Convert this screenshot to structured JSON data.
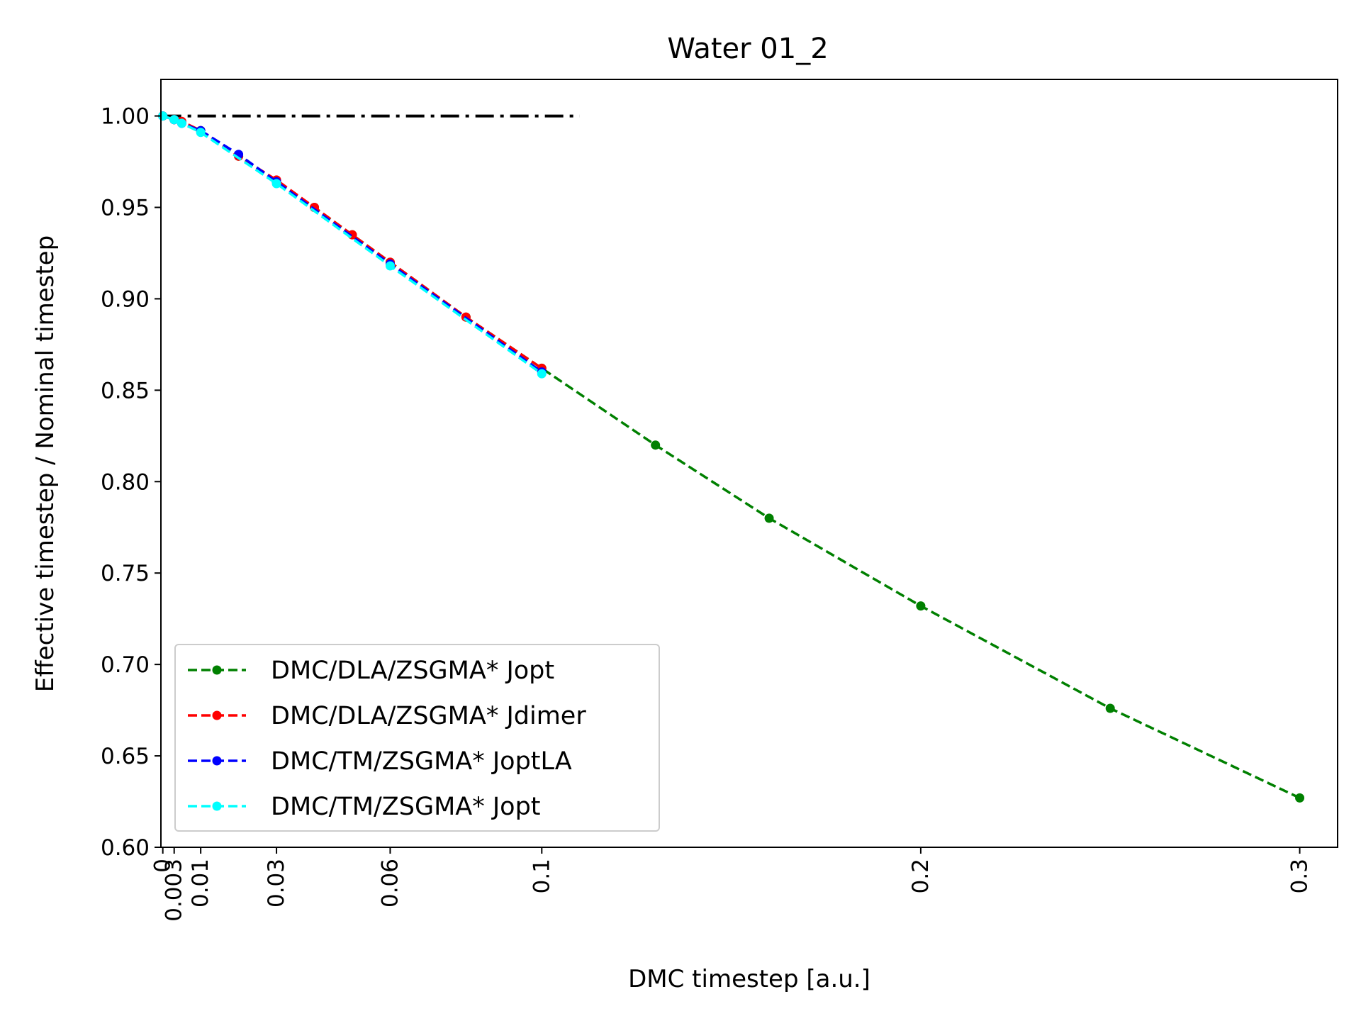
{
  "chart_data": {
    "type": "line",
    "title": "Water 01_2",
    "xlabel": "DMC timestep [a.u.]",
    "ylabel": "Effective timestep / Nominal timestep",
    "xlim": [
      -0.0005,
      0.31
    ],
    "ylim": [
      0.6,
      1.02
    ],
    "x_ticks": [
      {
        "value": 0,
        "label": "0"
      },
      {
        "value": 0.003,
        "label": "0.003"
      },
      {
        "value": 0.01,
        "label": "0.01"
      },
      {
        "value": 0.03,
        "label": "0.03"
      },
      {
        "value": 0.06,
        "label": "0.06"
      },
      {
        "value": 0.1,
        "label": "0.1"
      },
      {
        "value": 0.2,
        "label": "0.2"
      },
      {
        "value": 0.3,
        "label": "0.3"
      }
    ],
    "y_ticks": [
      {
        "value": 0.6,
        "label": "0.60"
      },
      {
        "value": 0.65,
        "label": "0.65"
      },
      {
        "value": 0.7,
        "label": "0.70"
      },
      {
        "value": 0.75,
        "label": "0.75"
      },
      {
        "value": 0.8,
        "label": "0.80"
      },
      {
        "value": 0.85,
        "label": "0.85"
      },
      {
        "value": 0.9,
        "label": "0.90"
      },
      {
        "value": 0.95,
        "label": "0.95"
      },
      {
        "value": 1.0,
        "label": "1.00"
      }
    ],
    "grid": false,
    "legend_position": "lower-left",
    "reference_line": {
      "x": [
        0,
        0.11
      ],
      "y": [
        1.0,
        1.0
      ],
      "color": "#000000",
      "style": "dashdot"
    },
    "series": [
      {
        "name": "DMC/DLA/ZSGMA* Jopt",
        "color": "#008000",
        "x": [
          0,
          0.003,
          0.01,
          0.02,
          0.03,
          0.04,
          0.05,
          0.06,
          0.08,
          0.1,
          0.13,
          0.16,
          0.2,
          0.25,
          0.3
        ],
        "y": [
          1.0,
          0.998,
          0.992,
          0.978,
          0.964,
          0.95,
          0.935,
          0.92,
          0.89,
          0.862,
          0.82,
          0.78,
          0.732,
          0.676,
          0.627
        ]
      },
      {
        "name": "DMC/DLA/ZSGMA* Jdimer",
        "color": "#ff0000",
        "x": [
          0,
          0.003,
          0.005,
          0.01,
          0.02,
          0.03,
          0.04,
          0.05,
          0.06,
          0.08,
          0.1
        ],
        "y": [
          1.0,
          0.998,
          0.997,
          0.992,
          0.978,
          0.965,
          0.95,
          0.935,
          0.92,
          0.89,
          0.862
        ]
      },
      {
        "name": "DMC/TM/ZSGMA* JoptLA",
        "color": "#0000ff",
        "x": [
          0,
          0.003,
          0.005,
          0.01,
          0.02,
          0.03,
          0.06,
          0.1
        ],
        "y": [
          1.0,
          0.998,
          0.996,
          0.992,
          0.979,
          0.964,
          0.919,
          0.86
        ]
      },
      {
        "name": "DMC/TM/ZSGMA* Jopt",
        "color": "#00ffff",
        "x": [
          0,
          0.003,
          0.005,
          0.01,
          0.03,
          0.06,
          0.1
        ],
        "y": [
          1.0,
          0.998,
          0.996,
          0.991,
          0.963,
          0.918,
          0.859
        ]
      }
    ]
  }
}
